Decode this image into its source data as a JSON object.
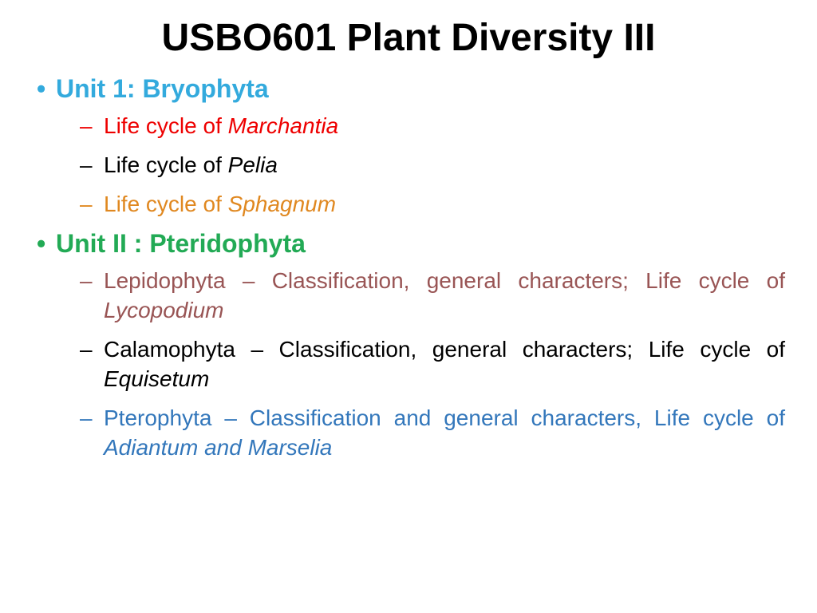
{
  "title": "USBO601 Plant Diversity III",
  "colors": {
    "unit1": "#33aadd",
    "unit2": "#22aa55",
    "red": "#ee0000",
    "orange": "#e08820",
    "black": "#000000",
    "maroon": "#995555",
    "blue": "#3377bb"
  },
  "unit1": {
    "heading": "Unit 1: Bryophyta",
    "item1_prefix": "Life cycle of ",
    "item1_italic": "Marchantia",
    "item2_prefix": " Life cycle of ",
    "item2_italic": "Pelia",
    "item3_prefix": "Life cycle of ",
    "item3_italic": "Sphagnum"
  },
  "unit2": {
    "heading": "Unit II : Pteridophyta",
    "item1_prefix": " Lepidophyta – Classification, general characters; Life cycle of ",
    "item1_italic": "Lycopodium",
    "item2_prefix": " Calamophyta – Classification, general characters; Life cycle of ",
    "item2_italic": "Equisetum",
    "item3_prefix": " Pterophyta – Classification and general characters, Life cycle of ",
    "item3_italic": "Adiantum and Marselia"
  }
}
